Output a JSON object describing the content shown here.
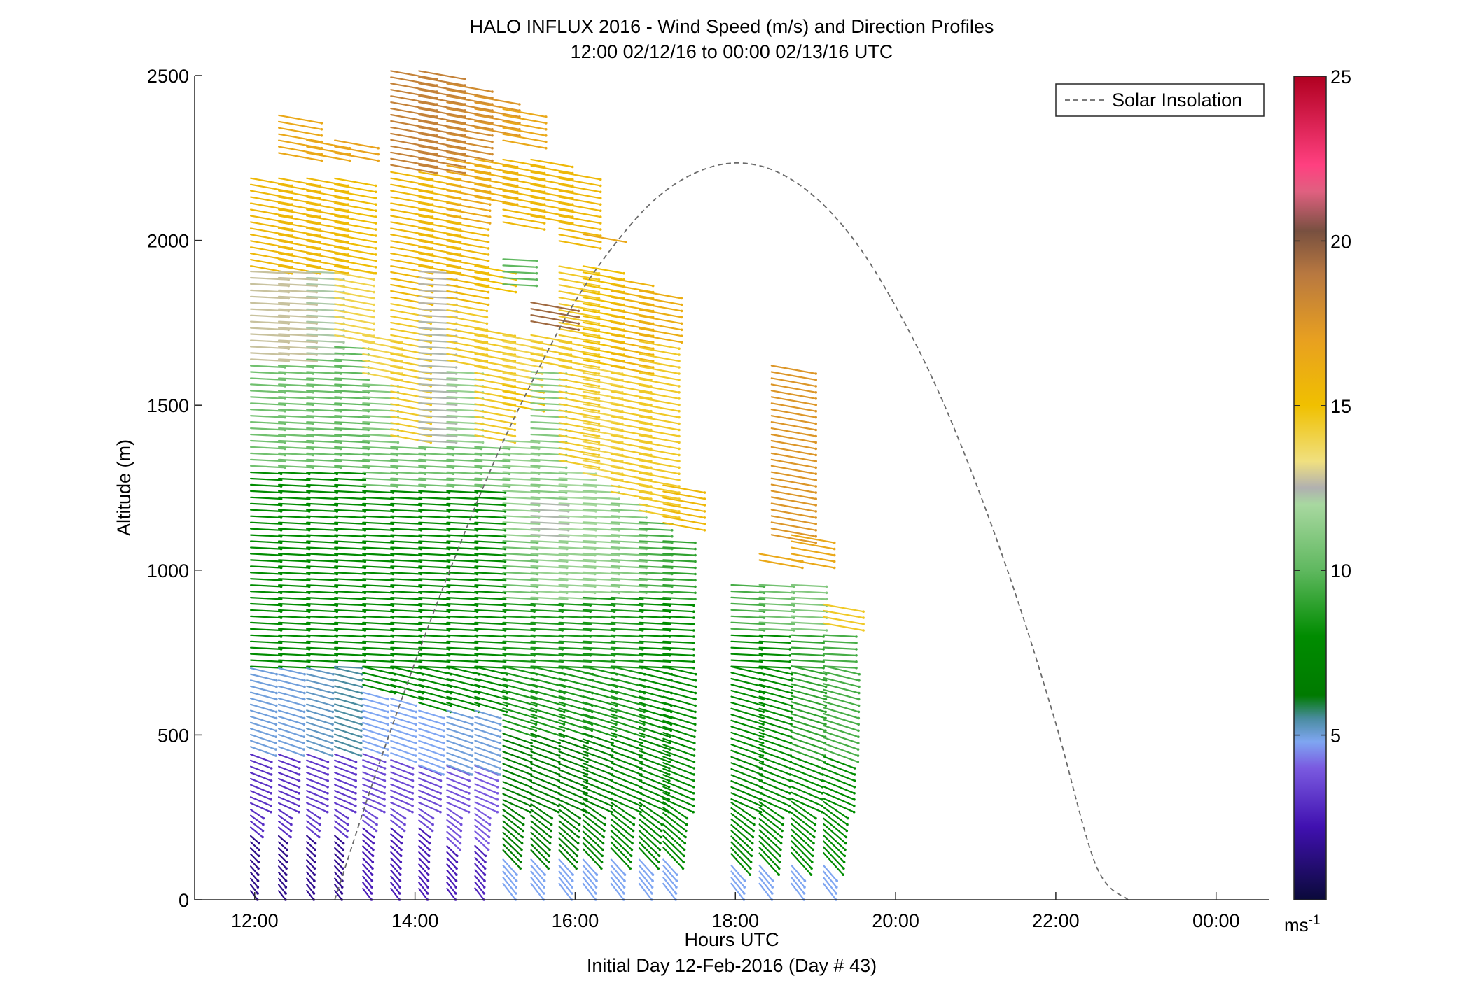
{
  "chart_data": {
    "type": "quiver",
    "title": "HALO INFLUX 2016 - Wind Speed (m/s) and Direction Profiles",
    "subtitle": "12:00 02/12/16 to 00:00 02/13/16  UTC",
    "xlabel": "Hours UTC",
    "x_sublabel": "Initial Day 12-Feb-2016 (Day # 43)",
    "ylabel": "Altitude (m)",
    "xlim": [
      "11:15",
      "00:40"
    ],
    "ylim": [
      0,
      2500
    ],
    "x_ticks": [
      {
        "h": 12,
        "label": "12:00"
      },
      {
        "h": 14,
        "label": "14:00"
      },
      {
        "h": 16,
        "label": "16:00"
      },
      {
        "h": 18,
        "label": "18:00"
      },
      {
        "h": 20,
        "label": "20:00"
      },
      {
        "h": 22,
        "label": "22:00"
      },
      {
        "h": 24,
        "label": "00:00"
      }
    ],
    "y_ticks": [
      {
        "v": 0,
        "label": "0"
      },
      {
        "v": 500,
        "label": "500"
      },
      {
        "v": 1000,
        "label": "1000"
      },
      {
        "v": 1500,
        "label": "1500"
      },
      {
        "v": 2000,
        "label": "2000"
      },
      {
        "v": 2500,
        "label": "2500"
      }
    ],
    "legend": {
      "label": "Solar Insolation",
      "placement": "top-right",
      "line_color": "#7a7a7a"
    },
    "colorbar": {
      "unit_label": "ms",
      "unit_sup": "-1",
      "range": [
        0,
        25
      ],
      "tick_values": [
        5,
        10,
        15,
        20,
        25
      ],
      "tick_labels": [
        "5",
        "10",
        "15",
        "20",
        "25"
      ],
      "stops": [
        {
          "v": 0,
          "c": "#0a0a3a"
        },
        {
          "v": 2.2,
          "c": "#4010b0"
        },
        {
          "v": 4.0,
          "c": "#7a5ae0"
        },
        {
          "v": 4.8,
          "c": "#7fa6f2"
        },
        {
          "v": 5.5,
          "c": "#4a8ca0"
        },
        {
          "v": 6.2,
          "c": "#007a00"
        },
        {
          "v": 8.0,
          "c": "#008c00"
        },
        {
          "v": 10.0,
          "c": "#5fb85f"
        },
        {
          "v": 12.0,
          "c": "#a8d8a0"
        },
        {
          "v": 12.5,
          "c": "#b0b0b0"
        },
        {
          "v": 13.3,
          "c": "#f0e080"
        },
        {
          "v": 15.0,
          "c": "#f0c000"
        },
        {
          "v": 17.0,
          "c": "#e8a020"
        },
        {
          "v": 19.0,
          "c": "#b87840"
        },
        {
          "v": 20.3,
          "c": "#785040"
        },
        {
          "v": 21.5,
          "c": "#e06080"
        },
        {
          "v": 22.3,
          "c": "#ff4080"
        },
        {
          "v": 25.0,
          "c": "#b00020"
        }
      ]
    },
    "solar_insolation": {
      "x": [
        13.0,
        13.5,
        14.0,
        14.5,
        15.0,
        15.5,
        16.0,
        16.5,
        17.0,
        17.5,
        18.0,
        18.5,
        19.0,
        19.5,
        20.0,
        20.5,
        21.0,
        21.5,
        22.0,
        22.5,
        22.9
      ],
      "y": [
        0,
        375,
        720,
        1040,
        1335,
        1590,
        1815,
        1990,
        2125,
        2205,
        2235,
        2210,
        2130,
        1995,
        1800,
        1560,
        1265,
        925,
        535,
        105,
        0
      ]
    },
    "profiles_note": "wind arrow profiles: hour, altitude range, speed (m/s) bands by altitude",
    "profiles": [
      {
        "t": 11.95,
        "bands": [
          [
            0,
            180,
            1.5
          ],
          [
            180,
            420,
            3.0
          ],
          [
            420,
            700,
            5.0
          ],
          [
            700,
            1300,
            8.0
          ],
          [
            1300,
            1620,
            10.5
          ],
          [
            1620,
            1900,
            12.8
          ],
          [
            1900,
            2180,
            15.5
          ]
        ]
      },
      {
        "t": 12.3,
        "bands": [
          [
            0,
            180,
            1.5
          ],
          [
            180,
            420,
            3.0
          ],
          [
            420,
            700,
            5.0
          ],
          [
            700,
            1300,
            8.0
          ],
          [
            1300,
            1620,
            10.5
          ],
          [
            1620,
            1900,
            12.8
          ],
          [
            1900,
            2180,
            15.5
          ],
          [
            2240,
            2360,
            16.5
          ]
        ]
      },
      {
        "t": 12.65,
        "bands": [
          [
            0,
            180,
            1.6
          ],
          [
            180,
            420,
            3.2
          ],
          [
            420,
            700,
            5.2
          ],
          [
            700,
            1300,
            7.8
          ],
          [
            1300,
            1640,
            10.3
          ],
          [
            1640,
            1900,
            12.2
          ],
          [
            1900,
            2180,
            15.5
          ],
          [
            2240,
            2290,
            16.5
          ]
        ]
      },
      {
        "t": 13.0,
        "bands": [
          [
            0,
            180,
            1.6
          ],
          [
            180,
            420,
            3.2
          ],
          [
            420,
            720,
            5.5
          ],
          [
            720,
            1300,
            7.8
          ],
          [
            1300,
            1680,
            10.0
          ],
          [
            1680,
            1900,
            14.0
          ],
          [
            1900,
            2180,
            15.2
          ],
          [
            2240,
            2290,
            16.8
          ]
        ]
      },
      {
        "t": 13.35,
        "bands": [
          [
            0,
            200,
            2.5
          ],
          [
            200,
            420,
            3.6
          ],
          [
            420,
            620,
            4.8
          ],
          [
            620,
            1240,
            7.8
          ],
          [
            1240,
            1380,
            10.5
          ],
          [
            1380,
            1560,
            11.0
          ],
          [
            1560,
            1700,
            14.0
          ]
        ]
      },
      {
        "t": 13.7,
        "bands": [
          [
            0,
            200,
            2.5
          ],
          [
            200,
            400,
            3.6
          ],
          [
            400,
            600,
            4.8
          ],
          [
            600,
            1240,
            7.8
          ],
          [
            1240,
            1380,
            10.5
          ],
          [
            1380,
            1800,
            14.5
          ],
          [
            1800,
            2200,
            15.5
          ],
          [
            2200,
            2490,
            18.5
          ]
        ]
      },
      {
        "t": 14.05,
        "bands": [
          [
            0,
            200,
            2.5
          ],
          [
            200,
            380,
            3.6
          ],
          [
            380,
            560,
            4.8
          ],
          [
            560,
            1240,
            7.8
          ],
          [
            1240,
            1380,
            10.5
          ],
          [
            1380,
            1760,
            12.4
          ],
          [
            1760,
            1900,
            12.6
          ],
          [
            1900,
            2200,
            15.5
          ],
          [
            2200,
            2490,
            18.5
          ]
        ]
      },
      {
        "t": 14.4,
        "bands": [
          [
            0,
            150,
            2.5
          ],
          [
            150,
            380,
            3.8
          ],
          [
            380,
            560,
            5.0
          ],
          [
            560,
            1240,
            7.8
          ],
          [
            1240,
            1380,
            10.5
          ],
          [
            1380,
            1600,
            11.5
          ],
          [
            1600,
            1800,
            14.5
          ],
          [
            1800,
            2040,
            15.5
          ],
          [
            2040,
            2240,
            16.5
          ],
          [
            2240,
            2460,
            18.0
          ]
        ]
      },
      {
        "t": 14.75,
        "bands": [
          [
            0,
            150,
            2.7
          ],
          [
            150,
            380,
            4.0
          ],
          [
            380,
            560,
            5.0
          ],
          [
            560,
            1240,
            7.8
          ],
          [
            1240,
            1380,
            10.5
          ],
          [
            1380,
            1720,
            14.5
          ],
          [
            1840,
            1900,
            15.0
          ],
          [
            2100,
            2230,
            16.0
          ],
          [
            2300,
            2430,
            17.5
          ]
        ]
      },
      {
        "t": 15.1,
        "bands": [
          [
            0,
            80,
            4.8
          ],
          [
            80,
            480,
            6.5
          ],
          [
            480,
            900,
            8.5
          ],
          [
            900,
            1100,
            10.5
          ],
          [
            1100,
            1400,
            11.5
          ],
          [
            1480,
            1540,
            15.0
          ],
          [
            1540,
            1700,
            14.0
          ],
          [
            1860,
            1940,
            10.0
          ],
          [
            2020,
            2240,
            15.5
          ],
          [
            2280,
            2380,
            16.5
          ]
        ]
      },
      {
        "t": 15.45,
        "bands": [
          [
            0,
            80,
            4.8
          ],
          [
            80,
            480,
            6.5
          ],
          [
            480,
            900,
            8.5
          ],
          [
            900,
            1100,
            11.5
          ],
          [
            1100,
            1200,
            12.4
          ],
          [
            1200,
            1600,
            11.0
          ],
          [
            1600,
            1700,
            14.5
          ],
          [
            1720,
            1800,
            19.5
          ],
          [
            2040,
            2240,
            15.5
          ]
        ]
      },
      {
        "t": 15.8,
        "bands": [
          [
            0,
            80,
            4.8
          ],
          [
            80,
            480,
            6.5
          ],
          [
            480,
            900,
            8.5
          ],
          [
            900,
            1100,
            11.5
          ],
          [
            1100,
            1300,
            12.0
          ],
          [
            1300,
            1900,
            14.5
          ],
          [
            1960,
            2200,
            15.5
          ]
        ]
      },
      {
        "t": 16.1,
        "bands": [
          [
            0,
            80,
            4.8
          ],
          [
            80,
            480,
            7.0
          ],
          [
            480,
            920,
            8.5
          ],
          [
            920,
            1260,
            11.5
          ],
          [
            1260,
            1600,
            14.0
          ],
          [
            1600,
            1900,
            15.0
          ],
          [
            1980,
            2010,
            16.5
          ]
        ]
      },
      {
        "t": 16.45,
        "bands": [
          [
            0,
            80,
            4.8
          ],
          [
            80,
            480,
            7.5
          ],
          [
            480,
            920,
            8.5
          ],
          [
            920,
            1200,
            11.0
          ],
          [
            1200,
            1580,
            14.5
          ],
          [
            1580,
            1880,
            15.8
          ]
        ]
      },
      {
        "t": 16.8,
        "bands": [
          [
            0,
            80,
            4.8
          ],
          [
            80,
            500,
            7.5
          ],
          [
            500,
            920,
            8.0
          ],
          [
            920,
            1150,
            9.5
          ],
          [
            1150,
            1680,
            14.5
          ],
          [
            1680,
            1840,
            16.2
          ]
        ]
      },
      {
        "t": 17.1,
        "bands": [
          [
            0,
            80,
            4.8
          ],
          [
            80,
            500,
            7.8
          ],
          [
            500,
            900,
            8.0
          ],
          [
            900,
            1100,
            9.0
          ],
          [
            1120,
            1240,
            15.5
          ]
        ]
      },
      {
        "t": 17.95,
        "bands": [
          [
            0,
            60,
            4.8
          ],
          [
            60,
            400,
            7.5
          ],
          [
            400,
            800,
            8.0
          ],
          [
            800,
            960,
            9.5
          ]
        ]
      },
      {
        "t": 18.3,
        "bands": [
          [
            0,
            60,
            4.8
          ],
          [
            60,
            400,
            7.8
          ],
          [
            400,
            800,
            8.0
          ],
          [
            800,
            960,
            10.5
          ],
          [
            1000,
            1040,
            16.5
          ]
        ]
      },
      {
        "t": 18.45,
        "bands": [
          [
            1080,
            1600,
            17.5
          ]
        ]
      },
      {
        "t": 18.7,
        "bands": [
          [
            0,
            60,
            4.8
          ],
          [
            60,
            400,
            8.0
          ],
          [
            400,
            800,
            9.0
          ],
          [
            800,
            960,
            11.0
          ],
          [
            1000,
            1100,
            16.5
          ]
        ]
      },
      {
        "t": 19.1,
        "bands": [
          [
            0,
            60,
            4.8
          ],
          [
            60,
            400,
            8.0
          ],
          [
            400,
            800,
            9.5
          ],
          [
            800,
            880,
            14.5
          ]
        ]
      }
    ]
  }
}
